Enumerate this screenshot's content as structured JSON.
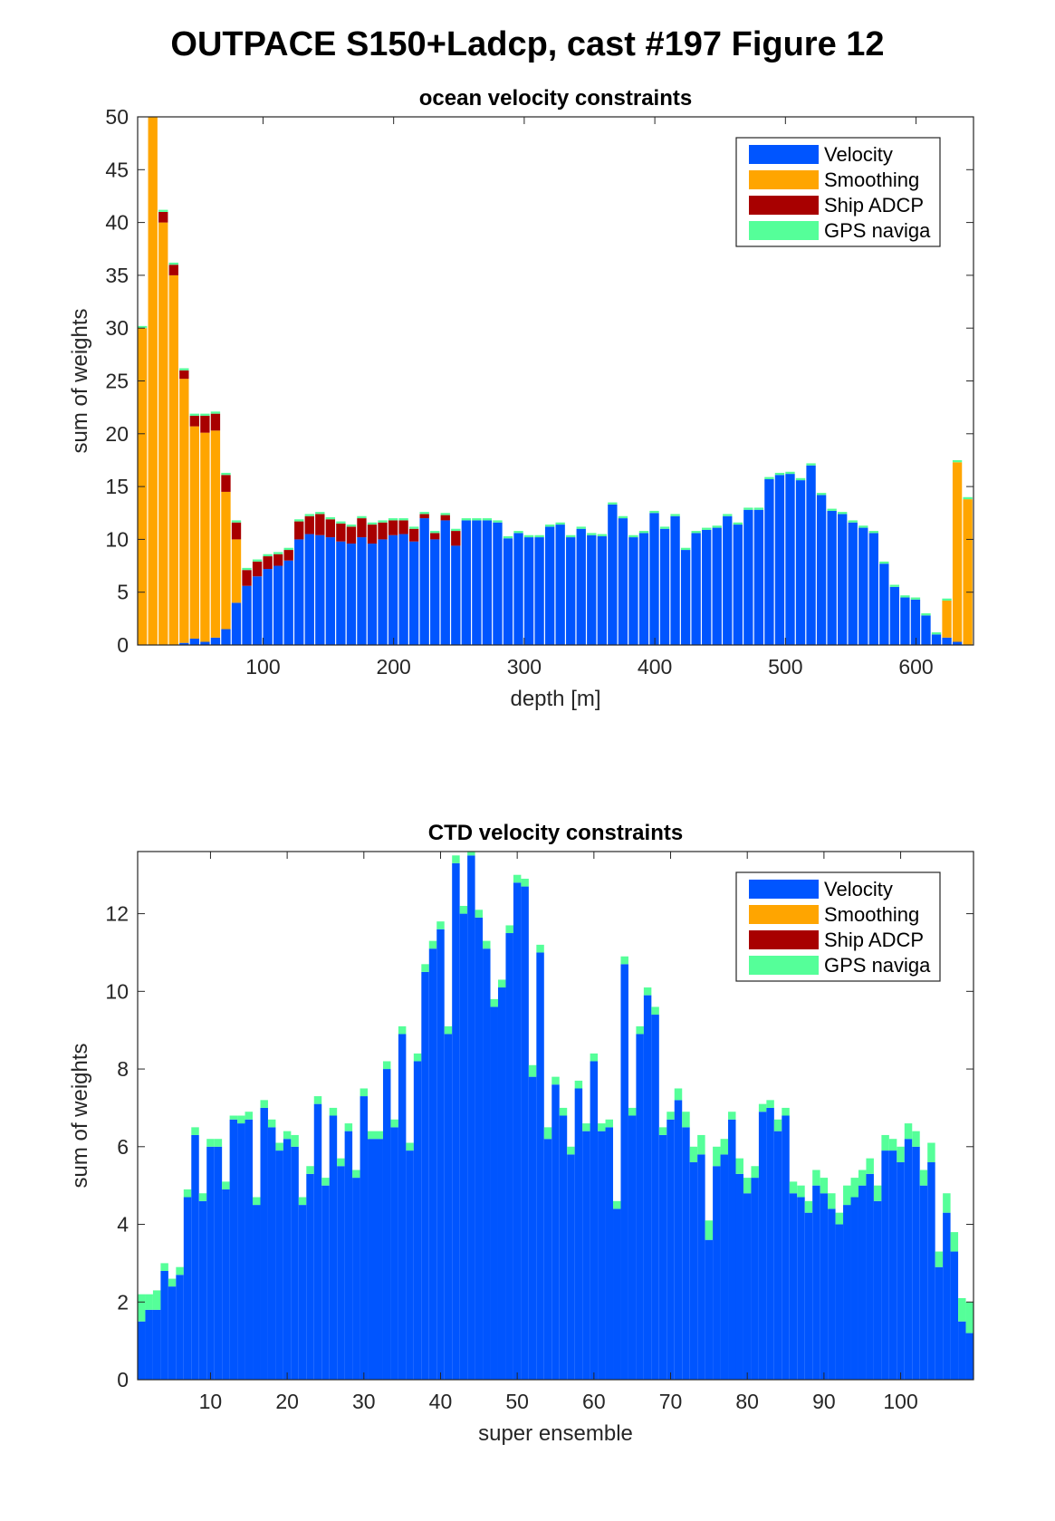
{
  "figure_title": "OUTPACE S150+Ladcp, cast #197  Figure 12",
  "colors": {
    "velocity": "#0055ff",
    "smoothing": "#ffa500",
    "ship_adcp": "#a80000",
    "gps": "#55ff99"
  },
  "chart_data": [
    {
      "type": "bar",
      "stacked": true,
      "title": "ocean velocity constraints",
      "xlabel": "depth [m]",
      "ylabel": "sum of weights",
      "xlim": [
        4,
        644
      ],
      "ylim": [
        0,
        50
      ],
      "xticks": [
        100,
        200,
        300,
        400,
        500,
        600
      ],
      "yticks": [
        0,
        5,
        10,
        15,
        20,
        25,
        30,
        35,
        40,
        45,
        50
      ],
      "legend_position": "top-right",
      "legend": [
        "Velocity",
        "Smoothing",
        "Ship ADCP",
        "GPS naviga"
      ],
      "x": [
        8,
        16,
        24,
        32,
        40,
        48,
        56,
        64,
        72,
        80,
        88,
        96,
        104,
        112,
        120,
        128,
        136,
        144,
        152,
        160,
        168,
        176,
        184,
        192,
        200,
        208,
        216,
        224,
        232,
        240,
        248,
        256,
        264,
        272,
        280,
        288,
        296,
        304,
        312,
        320,
        328,
        336,
        344,
        352,
        360,
        368,
        376,
        384,
        392,
        400,
        408,
        416,
        424,
        432,
        440,
        448,
        456,
        464,
        472,
        480,
        488,
        496,
        504,
        512,
        520,
        528,
        536,
        544,
        552,
        560,
        568,
        576,
        584,
        592,
        600,
        608,
        616,
        624,
        632,
        640
      ],
      "series": [
        {
          "name": "Velocity",
          "values": [
            0,
            0,
            0,
            0,
            0.2,
            0.6,
            0.3,
            0.7,
            1.5,
            4,
            5.6,
            6.5,
            7.2,
            7.5,
            8,
            10,
            10.5,
            10.4,
            10.2,
            9.8,
            9.6,
            10.2,
            9.6,
            10,
            10.4,
            10.5,
            9.8,
            12,
            10,
            11.8,
            9.4,
            11.8,
            11.8,
            11.8,
            11.6,
            10.1,
            10.6,
            10.2,
            10.2,
            11.2,
            11.4,
            10.2,
            11,
            10.4,
            10.3,
            13.3,
            12,
            10.2,
            10.6,
            12.5,
            11,
            12.2,
            9,
            10.6,
            10.9,
            11.1,
            12.2,
            11.4,
            12.8,
            12.8,
            15.7,
            16.1,
            16.2,
            15.6,
            17,
            14.2,
            12.7,
            12.4,
            11.6,
            11.1,
            10.6,
            7.7,
            5.5,
            4.5,
            4.3,
            2.8,
            1,
            0.7,
            0.3,
            0
          ]
        },
        {
          "name": "Smoothing",
          "values": [
            30,
            50,
            40,
            35,
            25,
            20.1,
            19.8,
            19.6,
            13,
            6,
            0,
            0,
            0,
            0,
            0,
            0,
            0,
            0,
            0,
            0,
            0,
            0,
            0,
            0,
            0,
            0,
            0,
            0,
            0,
            0,
            0,
            0,
            0,
            0,
            0,
            0,
            0,
            0,
            0,
            0,
            0,
            0,
            0,
            0,
            0,
            0,
            0,
            0,
            0,
            0,
            0,
            0,
            0,
            0,
            0,
            0,
            0,
            0,
            0,
            0,
            0,
            0,
            0,
            0,
            0,
            0,
            0,
            0,
            0,
            0,
            0,
            0,
            0,
            0,
            0,
            0,
            0,
            3.5,
            17,
            13.8
          ]
        },
        {
          "name": "Ship ADCP",
          "values": [
            0,
            0,
            1,
            1,
            0.8,
            1,
            1.6,
            1.6,
            1.6,
            1.6,
            1.5,
            1.4,
            1.2,
            1.1,
            1,
            1.7,
            1.7,
            2,
            1.7,
            1.7,
            1.6,
            1.8,
            1.8,
            1.6,
            1.4,
            1.3,
            1.2,
            0.4,
            0.6,
            0.5,
            1.4,
            0,
            0,
            0,
            0,
            0,
            0,
            0,
            0,
            0,
            0,
            0,
            0,
            0,
            0,
            0,
            0,
            0,
            0,
            0,
            0,
            0,
            0,
            0,
            0,
            0,
            0,
            0,
            0,
            0,
            0,
            0,
            0,
            0,
            0,
            0,
            0,
            0,
            0,
            0,
            0,
            0,
            0,
            0,
            0,
            0,
            0,
            0,
            0,
            0
          ]
        },
        {
          "name": "GPS naviga",
          "values": [
            0.2,
            0.2,
            0.2,
            0.2,
            0.2,
            0.2,
            0.2,
            0.2,
            0.2,
            0.2,
            0.2,
            0.2,
            0.2,
            0.2,
            0.2,
            0.2,
            0.2,
            0.2,
            0.2,
            0.2,
            0.2,
            0.2,
            0.2,
            0.2,
            0.2,
            0.2,
            0.2,
            0.2,
            0.2,
            0.2,
            0.2,
            0.2,
            0.2,
            0.2,
            0.2,
            0.2,
            0.2,
            0.2,
            0.2,
            0.2,
            0.2,
            0.2,
            0.2,
            0.2,
            0.2,
            0.2,
            0.2,
            0.2,
            0.2,
            0.2,
            0.2,
            0.2,
            0.2,
            0.2,
            0.2,
            0.2,
            0.2,
            0.2,
            0.2,
            0.2,
            0.2,
            0.2,
            0.2,
            0.2,
            0.2,
            0.2,
            0.2,
            0.2,
            0.2,
            0.2,
            0.2,
            0.2,
            0.2,
            0.2,
            0.2,
            0.2,
            0.2,
            0.2,
            0.2,
            0.2
          ]
        }
      ]
    },
    {
      "type": "bar",
      "stacked": true,
      "title": "CTD velocity constraints",
      "xlabel": "super ensemble",
      "ylabel": "sum of weights",
      "xlim": [
        0.5,
        109.5
      ],
      "ylim": [
        0,
        13.6
      ],
      "xticks": [
        10,
        20,
        30,
        40,
        50,
        60,
        70,
        80,
        90,
        100
      ],
      "yticks": [
        0,
        2,
        4,
        6,
        8,
        10,
        12
      ],
      "legend_position": "top-right",
      "legend": [
        "Velocity",
        "Smoothing",
        "Ship ADCP",
        "GPS naviga"
      ],
      "x": [
        1,
        2,
        3,
        4,
        5,
        6,
        7,
        8,
        9,
        10,
        11,
        12,
        13,
        14,
        15,
        16,
        17,
        18,
        19,
        20,
        21,
        22,
        23,
        24,
        25,
        26,
        27,
        28,
        29,
        30,
        31,
        32,
        33,
        34,
        35,
        36,
        37,
        38,
        39,
        40,
        41,
        42,
        43,
        44,
        45,
        46,
        47,
        48,
        49,
        50,
        51,
        52,
        53,
        54,
        55,
        56,
        57,
        58,
        59,
        60,
        61,
        62,
        63,
        64,
        65,
        66,
        67,
        68,
        69,
        70,
        71,
        72,
        73,
        74,
        75,
        76,
        77,
        78,
        79,
        80,
        81,
        82,
        83,
        84,
        85,
        86,
        87,
        88,
        89,
        90,
        91,
        92,
        93,
        94,
        95,
        96,
        97,
        98,
        99,
        100,
        101,
        102,
        103,
        104,
        105,
        106,
        107,
        108,
        109
      ],
      "series": [
        {
          "name": "Velocity",
          "values": [
            1.5,
            1.8,
            1.8,
            2.8,
            2.4,
            2.7,
            4.7,
            6.3,
            4.6,
            6.0,
            6.0,
            4.9,
            6.7,
            6.6,
            6.7,
            4.5,
            7.0,
            6.5,
            5.9,
            6.2,
            6.0,
            4.5,
            5.3,
            7.1,
            5.0,
            6.8,
            5.5,
            6.4,
            5.2,
            7.3,
            6.2,
            6.2,
            8.0,
            6.5,
            8.9,
            5.9,
            8.2,
            10.5,
            11.1,
            11.6,
            8.9,
            13.3,
            12.0,
            13.5,
            11.9,
            11.1,
            9.6,
            10.1,
            11.5,
            12.8,
            12.7,
            7.8,
            11.0,
            6.2,
            7.6,
            6.8,
            5.8,
            7.5,
            6.4,
            8.2,
            6.4,
            6.5,
            4.4,
            10.7,
            6.8,
            8.9,
            9.9,
            9.4,
            6.3,
            6.7,
            7.2,
            6.5,
            5.6,
            5.8,
            3.6,
            5.5,
            5.8,
            6.7,
            5.3,
            4.8,
            5.2,
            6.9,
            7.0,
            6.4,
            6.8,
            4.8,
            4.7,
            4.3,
            5.0,
            4.8,
            4.4,
            4.0,
            4.5,
            4.7,
            5.0,
            5.3,
            4.6,
            5.9,
            5.9,
            5.6,
            6.2,
            6.0,
            5.0,
            5.6,
            2.9,
            4.3,
            3.3,
            1.5,
            1.2
          ]
        },
        {
          "name": "Smoothing",
          "values": [
            0,
            0,
            0,
            0,
            0,
            0,
            0,
            0,
            0,
            0,
            0,
            0,
            0,
            0,
            0,
            0,
            0,
            0,
            0,
            0,
            0,
            0,
            0,
            0,
            0,
            0,
            0,
            0,
            0,
            0,
            0,
            0,
            0,
            0,
            0,
            0,
            0,
            0,
            0,
            0,
            0,
            0,
            0,
            0,
            0,
            0,
            0,
            0,
            0,
            0,
            0,
            0,
            0,
            0,
            0,
            0,
            0,
            0,
            0,
            0,
            0,
            0,
            0,
            0,
            0,
            0,
            0,
            0,
            0,
            0,
            0,
            0,
            0,
            0,
            0,
            0,
            0,
            0,
            0,
            0,
            0,
            0,
            0,
            0,
            0,
            0,
            0,
            0,
            0,
            0,
            0,
            0,
            0,
            0,
            0,
            0,
            0,
            0,
            0,
            0,
            0,
            0,
            0,
            0,
            0,
            0,
            0,
            0,
            0
          ]
        },
        {
          "name": "Ship ADCP",
          "values": [
            0,
            0,
            0,
            0,
            0,
            0,
            0,
            0,
            0,
            0,
            0,
            0,
            0,
            0,
            0,
            0,
            0,
            0,
            0,
            0,
            0,
            0,
            0,
            0,
            0,
            0,
            0,
            0,
            0,
            0,
            0,
            0,
            0,
            0,
            0,
            0,
            0,
            0,
            0,
            0,
            0,
            0,
            0,
            0,
            0,
            0,
            0,
            0,
            0,
            0,
            0,
            0,
            0,
            0,
            0,
            0,
            0,
            0,
            0,
            0,
            0,
            0,
            0,
            0,
            0,
            0,
            0,
            0,
            0,
            0,
            0,
            0,
            0,
            0,
            0,
            0,
            0,
            0,
            0,
            0,
            0,
            0,
            0,
            0,
            0,
            0,
            0,
            0,
            0,
            0,
            0,
            0,
            0,
            0,
            0,
            0,
            0,
            0,
            0,
            0,
            0,
            0,
            0,
            0,
            0,
            0,
            0,
            0,
            0
          ]
        },
        {
          "name": "GPS naviga",
          "values": [
            0.7,
            0.4,
            0.5,
            0.2,
            0.2,
            0.2,
            0.2,
            0.2,
            0.2,
            0.2,
            0.2,
            0.2,
            0.1,
            0.2,
            0.2,
            0.2,
            0.2,
            0.2,
            0.2,
            0.2,
            0.3,
            0.2,
            0.2,
            0.2,
            0.2,
            0.2,
            0.2,
            0.2,
            0.2,
            0.2,
            0.2,
            0.2,
            0.2,
            0.2,
            0.2,
            0.2,
            0.2,
            0.2,
            0.2,
            0.2,
            0.2,
            0.2,
            0.2,
            0.2,
            0.2,
            0.2,
            0.2,
            0.2,
            0.2,
            0.2,
            0.2,
            0.3,
            0.2,
            0.3,
            0.2,
            0.2,
            0.2,
            0.2,
            0.2,
            0.2,
            0.2,
            0.2,
            0.2,
            0.2,
            0.2,
            0.2,
            0.2,
            0.2,
            0.2,
            0.2,
            0.3,
            0.4,
            0.4,
            0.5,
            0.5,
            0.5,
            0.4,
            0.2,
            0.4,
            0.4,
            0.3,
            0.2,
            0.2,
            0.3,
            0.2,
            0.3,
            0.3,
            0.3,
            0.4,
            0.4,
            0.4,
            0.3,
            0.5,
            0.5,
            0.4,
            0.4,
            0.4,
            0.4,
            0.3,
            0.4,
            0.4,
            0.4,
            0.4,
            0.5,
            0.4,
            0.5,
            0.5,
            0.6,
            0.8
          ]
        }
      ]
    }
  ]
}
